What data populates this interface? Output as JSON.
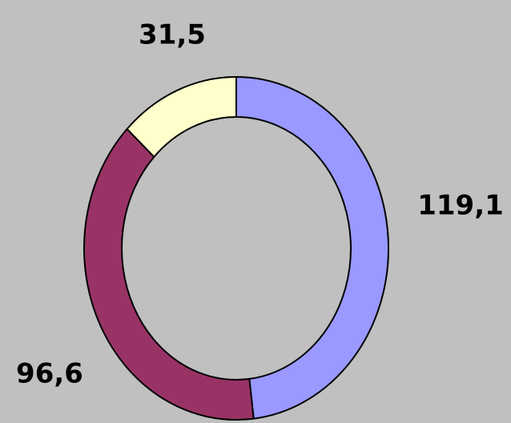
{
  "chart_data": {
    "type": "donut",
    "categories": [
      null,
      null,
      null
    ],
    "values": [
      119.1,
      96.6,
      31.5
    ],
    "value_labels": [
      "119,1",
      "96,6",
      "31,5"
    ],
    "colors": [
      "#9999ff",
      "#993366",
      "#ffffcc"
    ]
  }
}
